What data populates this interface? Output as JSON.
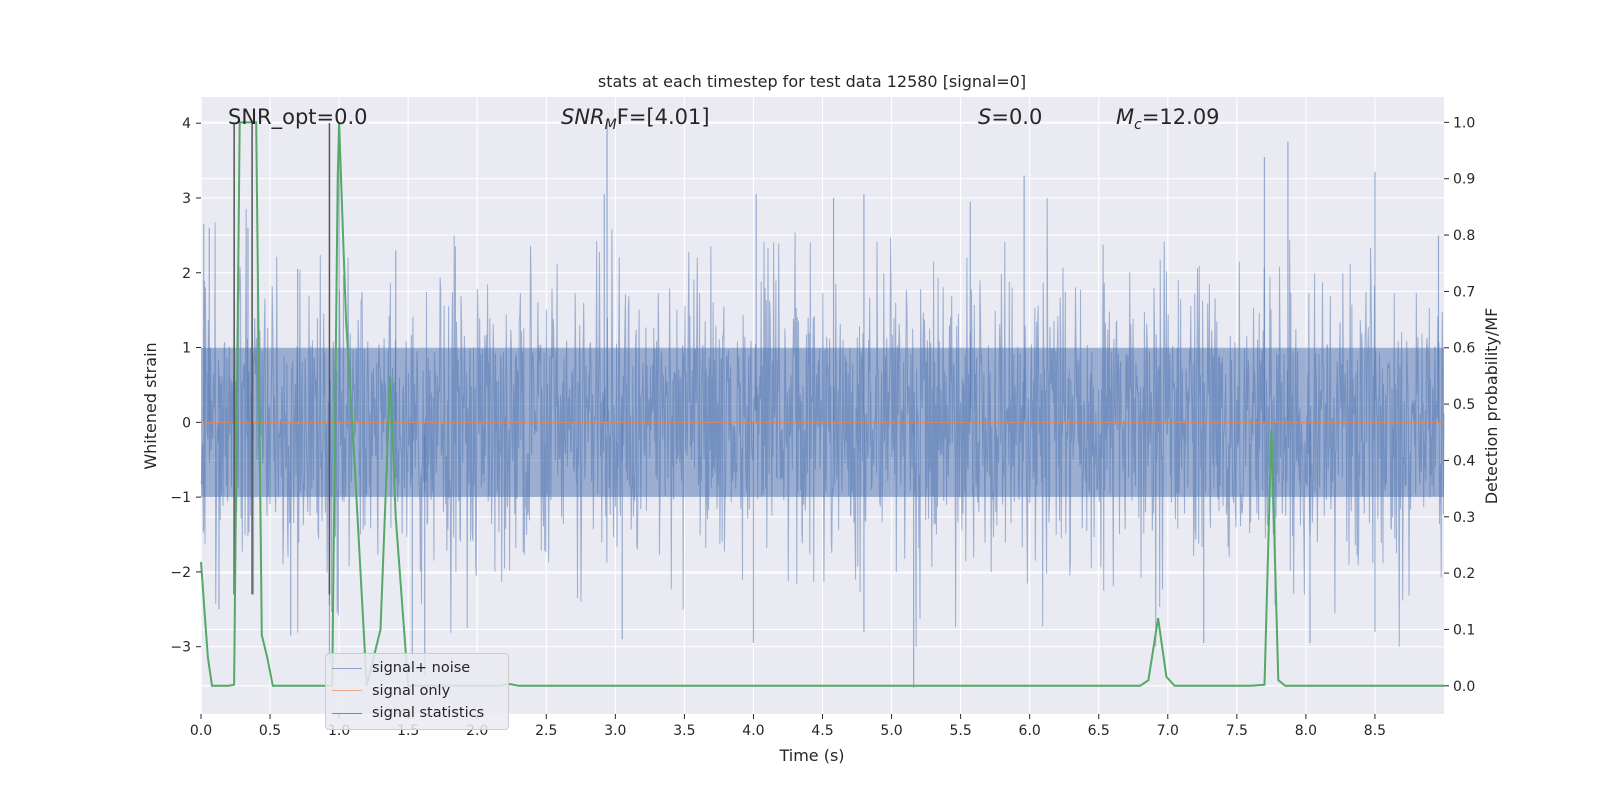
{
  "chart_data": {
    "type": "line",
    "title": "stats at each timestep for test data 12580 [signal=0]",
    "xlabel": "Time (s)",
    "ylabel": "Whitened strain",
    "ylabel_right": "Detection probability/MF",
    "xlim": [
      0.0,
      9.0
    ],
    "ylim": [
      -3.9,
      4.35
    ],
    "ylim_right": [
      -0.05,
      1.045
    ],
    "x_ticks": [
      "0.0",
      "0.5",
      "1.0",
      "1.5",
      "2.0",
      "2.5",
      "3.0",
      "3.5",
      "4.0",
      "4.5",
      "5.0",
      "5.5",
      "6.0",
      "6.5",
      "7.0",
      "7.5",
      "8.0",
      "8.5"
    ],
    "y_ticks": [
      "−3",
      "−2",
      "−1",
      "0",
      "1",
      "2",
      "3",
      "4"
    ],
    "y_ticks_right": [
      "0.0",
      "0.1",
      "0.2",
      "0.3",
      "0.4",
      "0.5",
      "0.6",
      "0.7",
      "0.8",
      "0.9",
      "1.0"
    ],
    "grid": true,
    "legend_position": "lower-left",
    "annotations": {
      "snr_opt": "SNR_opt=0.0",
      "snr_mf_main": "SNR",
      "snr_mf_sub": "M",
      "snr_mf_rest": "F=[4.01]",
      "s_main": "S",
      "s_rest": "=0.0",
      "mc_main": "M",
      "mc_sub": "c",
      "mc_rest": "=12.09"
    },
    "vertical_markers": [
      0.24,
      0.37,
      0.93
    ],
    "colors": {
      "noise": "#4c72b0",
      "signal_only": "#dd8452",
      "statistics": "#55a868",
      "background": "#eaeaf2",
      "grid": "#ffffff",
      "marker": "#555555"
    },
    "series": [
      {
        "name": "signal+ noise",
        "kind": "noise_band",
        "approx_abs_max": 4.0,
        "peaks": [
          {
            "x": 0.02,
            "y": 2.65
          },
          {
            "x": 0.06,
            "y": 2.6
          },
          {
            "x": 0.24,
            "y": 3.05
          },
          {
            "x": 0.34,
            "y": 2.6
          },
          {
            "x": 0.7,
            "y": 2.05
          },
          {
            "x": 1.0,
            "y": 3.9
          },
          {
            "x": 1.41,
            "y": 2.3
          },
          {
            "x": 2.92,
            "y": 3.05
          },
          {
            "x": 2.94,
            "y": 4.05
          },
          {
            "x": 4.02,
            "y": 3.05
          },
          {
            "x": 4.58,
            "y": 3.0
          },
          {
            "x": 4.8,
            "y": 3.05
          },
          {
            "x": 5.57,
            "y": 2.95
          },
          {
            "x": 5.96,
            "y": 3.3
          },
          {
            "x": 7.7,
            "y": 3.55
          },
          {
            "x": 7.87,
            "y": 3.75
          },
          {
            "x": 8.5,
            "y": 3.35
          },
          {
            "x": 8.96,
            "y": 2.5
          }
        ],
        "troughs": [
          {
            "x": 0.13,
            "y": -2.5
          },
          {
            "x": 0.38,
            "y": -2.3
          },
          {
            "x": 0.65,
            "y": -2.85
          },
          {
            "x": 0.93,
            "y": -3.2
          },
          {
            "x": 1.53,
            "y": -3.1
          },
          {
            "x": 1.62,
            "y": -3.4
          },
          {
            "x": 3.05,
            "y": -2.9
          },
          {
            "x": 4.0,
            "y": -2.95
          },
          {
            "x": 4.8,
            "y": -2.8
          },
          {
            "x": 5.16,
            "y": -3.55
          },
          {
            "x": 7.26,
            "y": -2.95
          },
          {
            "x": 8.03,
            "y": -2.95
          },
          {
            "x": 8.5,
            "y": -2.8
          }
        ]
      },
      {
        "name": "signal only",
        "kind": "line",
        "x": [
          0.0,
          9.0
        ],
        "y": [
          0.0,
          0.0
        ]
      },
      {
        "name": "signal statistics",
        "kind": "line",
        "axis": "right",
        "x": [
          0.0,
          0.02,
          0.05,
          0.08,
          0.12,
          0.16,
          0.2,
          0.24,
          0.28,
          0.32,
          0.36,
          0.4,
          0.44,
          0.48,
          0.52,
          0.6,
          0.7,
          0.8,
          0.9,
          0.95,
          0.99,
          1.0,
          1.05,
          1.1,
          1.2,
          1.3,
          1.37,
          1.41,
          1.5,
          1.6,
          1.8,
          2.0,
          2.15,
          2.24,
          2.3,
          2.5,
          3.0,
          4.0,
          5.0,
          6.0,
          6.8,
          6.86,
          6.93,
          6.99,
          7.05,
          7.1,
          7.3,
          7.6,
          7.7,
          7.75,
          7.8,
          7.85,
          8.0,
          8.5,
          9.0
        ],
        "y": [
          0.22,
          0.15,
          0.05,
          0.0,
          0.0,
          0.0,
          0.0,
          0.002,
          1.0,
          1.0,
          1.0,
          1.0,
          0.09,
          0.05,
          0.0,
          0.0,
          0.0,
          0.0,
          0.0,
          0.0,
          0.9,
          1.0,
          0.65,
          0.45,
          0.0,
          0.1,
          0.55,
          0.3,
          0.0,
          0.0,
          0.0,
          0.0,
          0.0,
          0.003,
          0.0,
          0.0,
          0.0,
          0.0,
          0.0,
          0.0,
          0.0,
          0.01,
          0.12,
          0.016,
          0.0,
          0.0,
          0.0,
          0.0,
          0.002,
          0.455,
          0.01,
          0.0,
          0.0,
          0.0,
          0.0
        ]
      }
    ]
  }
}
